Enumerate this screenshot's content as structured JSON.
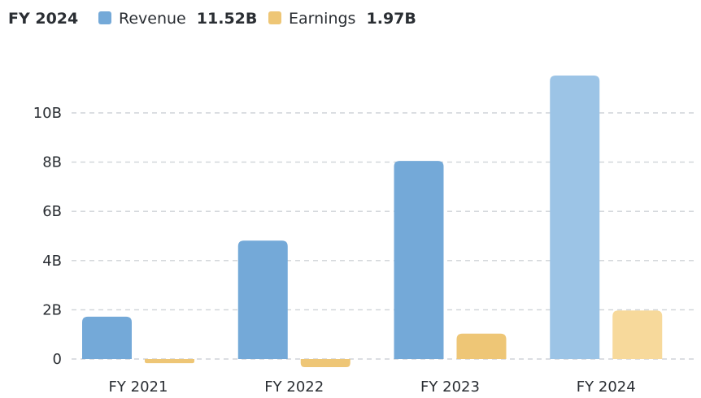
{
  "colors": {
    "revenue": "#74a9d8",
    "revenue_active": "#9cc4e6",
    "earnings": "#eec676",
    "earnings_active": "#f7d99b",
    "grid": "#cfd3d8",
    "text": "#2a2e33"
  },
  "legend": {
    "period": "FY 2024",
    "revenue_label": "Revenue",
    "revenue_value": "11.52B",
    "earnings_label": "Earnings",
    "earnings_value": "1.97B"
  },
  "chart_data": {
    "type": "bar",
    "title": "",
    "xlabel": "",
    "ylabel": "",
    "categories": [
      "FY 2021",
      "FY 2022",
      "FY 2023",
      "FY 2024"
    ],
    "series": [
      {
        "name": "Revenue",
        "values": [
          1.72,
          4.81,
          8.05,
          11.52
        ]
      },
      {
        "name": "Earnings",
        "values": [
          -0.17,
          -0.33,
          1.03,
          1.97
        ]
      }
    ],
    "unit": "B",
    "ylim": [
      -0.5,
      11.52
    ],
    "yticks": [
      0,
      2,
      4,
      6,
      8,
      10
    ],
    "ytick_labels": [
      "0",
      "2B",
      "4B",
      "6B",
      "8B",
      "10B"
    ],
    "highlighted_category": "FY 2024",
    "grid": true,
    "legend_position": "top-left"
  }
}
